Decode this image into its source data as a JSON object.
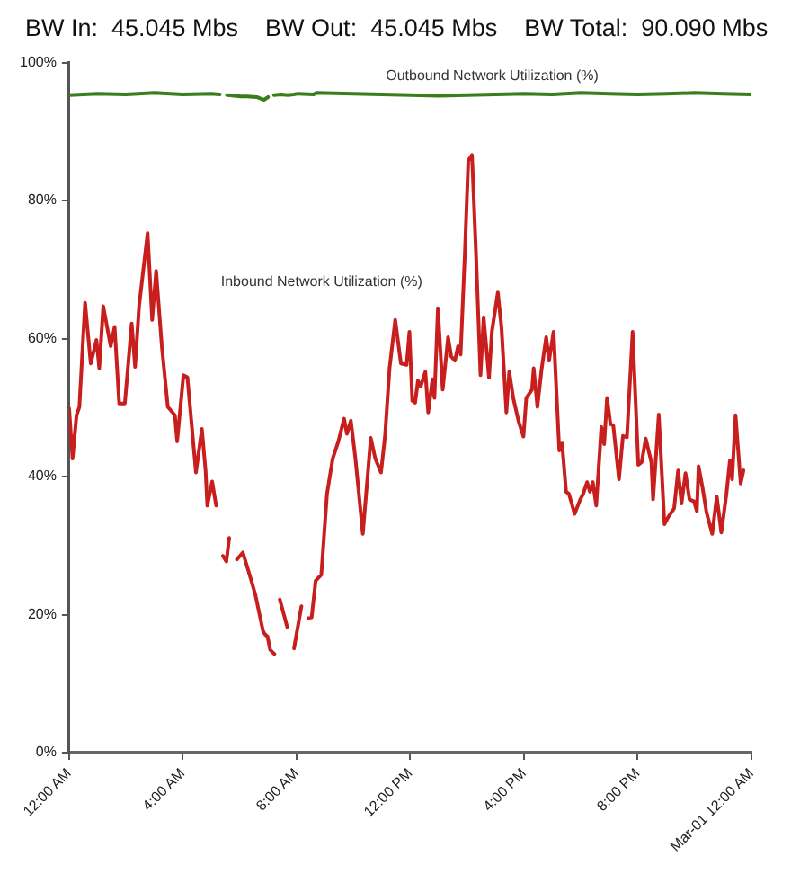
{
  "chart_data": {
    "type": "line",
    "title": "BW In:  45.045 Mbs    BW Out:  45.045 Mbs    BW Total:  90.090 Mbs",
    "xlim": [
      0,
      24
    ],
    "xticks": [
      {
        "value": 0,
        "label": "12:00 AM"
      },
      {
        "value": 4,
        "label": "4:00 AM"
      },
      {
        "value": 8,
        "label": "8:00 AM"
      },
      {
        "value": 12,
        "label": "12:00 PM"
      },
      {
        "value": 16,
        "label": "4:00 PM"
      },
      {
        "value": 20,
        "label": "8:00 PM"
      },
      {
        "value": 24,
        "label": "Mar-01 12:00 AM"
      }
    ],
    "ylim": [
      0,
      100
    ],
    "yticks": [
      {
        "value": 0,
        "label": "0%"
      },
      {
        "value": 20,
        "label": "20%"
      },
      {
        "value": 40,
        "label": "40%"
      },
      {
        "value": 60,
        "label": "60%"
      },
      {
        "value": 80,
        "label": "80%"
      },
      {
        "value": 100,
        "label": "100%"
      }
    ],
    "marker": "none",
    "line_style": "solid",
    "series": [
      {
        "name": "Outbound Network Utilization (%)",
        "color": "#3a7d1a",
        "x": [
          0,
          1,
          2,
          3,
          4,
          5,
          5.3,
          5.45,
          5.55,
          5.8,
          6.05,
          6.25,
          6.6,
          6.85,
          7.0,
          7.1,
          7.2,
          7.45,
          7.7,
          7.9,
          8.05,
          8.6,
          8.7,
          10,
          11,
          12,
          13,
          14,
          15,
          16,
          17,
          18,
          19,
          20,
          21,
          22,
          23,
          24
        ],
        "values": [
          95.3,
          95.5,
          95.4,
          95.6,
          95.4,
          95.5,
          95.4,
          null,
          95.3,
          95.2,
          95.1,
          95.1,
          95.0,
          94.6,
          95.0,
          null,
          95.3,
          95.4,
          95.3,
          95.4,
          95.5,
          95.4,
          95.6,
          95.5,
          95.4,
          95.3,
          95.2,
          95.3,
          95.4,
          95.5,
          95.4,
          95.6,
          95.5,
          95.4,
          95.5,
          95.6,
          95.5,
          95.4
        ]
      },
      {
        "name": "Inbound Network Utilization (%)",
        "color": "#c81e1e",
        "x": [
          0,
          0.12,
          0.26,
          0.36,
          0.56,
          0.76,
          0.96,
          1.06,
          1.2,
          1.46,
          1.6,
          1.76,
          1.96,
          2.2,
          2.32,
          2.46,
          2.76,
          2.92,
          3.06,
          3.26,
          3.47,
          3.72,
          3.8,
          4.02,
          4.16,
          4.46,
          4.67,
          4.8,
          4.86,
          5.03,
          5.17,
          5.3,
          5.41,
          5.53,
          5.63,
          5.75,
          5.9,
          6.11,
          6.41,
          6.56,
          6.82,
          6.9,
          6.98,
          7.07,
          7.14,
          7.22,
          7.3,
          7.41,
          7.67,
          7.75,
          7.91,
          8.17,
          8.3,
          8.41,
          8.53,
          8.67,
          8.87,
          9.07,
          9.27,
          9.47,
          9.67,
          9.77,
          9.91,
          10.07,
          10.33,
          10.61,
          10.77,
          10.97,
          11.11,
          11.27,
          11.47,
          11.67,
          11.87,
          11.97,
          12.07,
          12.17,
          12.27,
          12.37,
          12.53,
          12.63,
          12.78,
          12.85,
          12.97,
          13.14,
          13.33,
          13.44,
          13.57,
          13.68,
          13.77,
          13.92,
          14.04,
          14.17,
          14.31,
          14.47,
          14.58,
          14.77,
          14.87,
          15.08,
          15.21,
          15.38,
          15.48,
          15.62,
          15.81,
          15.98,
          16.08,
          16.28,
          16.34,
          16.47,
          16.62,
          16.78,
          16.88,
          17.04,
          17.24,
          17.34,
          17.48,
          17.58,
          17.78,
          17.98,
          18.08,
          18.22,
          18.32,
          18.42,
          18.54,
          18.72,
          18.82,
          18.92,
          19.04,
          19.14,
          19.34,
          19.48,
          19.62,
          19.82,
          20.02,
          20.14,
          20.28,
          20.48,
          20.54,
          20.74,
          20.94,
          21.08,
          21.28,
          21.42,
          21.54,
          21.68,
          21.82,
          21.98,
          22.08,
          22.14,
          22.28,
          22.42,
          22.62,
          22.78,
          22.94,
          23.12,
          23.24,
          23.32,
          23.44,
          23.62,
          23.72
        ],
        "values": [
          49.9,
          42.6,
          48.9,
          50.1,
          65.2,
          56.4,
          59.8,
          55.7,
          64.7,
          58.9,
          61.7,
          50.6,
          50.6,
          62.2,
          55.9,
          64.7,
          75.3,
          62.7,
          69.8,
          58.9,
          50.1,
          48.9,
          45.1,
          54.7,
          54.4,
          40.6,
          46.9,
          40.8,
          35.8,
          39.3,
          35.8,
          null,
          28.5,
          27.7,
          31.1,
          null,
          28.0,
          29.0,
          24.9,
          22.7,
          17.6,
          17.1,
          16.8,
          14.9,
          14.6,
          14.3,
          null,
          22.2,
          18.2,
          null,
          15.1,
          21.2,
          null,
          19.5,
          19.6,
          24.9,
          25.8,
          37.5,
          42.6,
          45.1,
          48.4,
          46.2,
          48.1,
          42.6,
          31.7,
          45.6,
          42.6,
          40.6,
          45.8,
          55.7,
          62.7,
          56.4,
          56.2,
          61.0,
          51.0,
          50.7,
          53.9,
          53.1,
          55.2,
          49.3,
          54.1,
          51.4,
          64.4,
          52.6,
          60.2,
          57.4,
          56.8,
          58.9,
          57.7,
          72.4,
          85.8,
          86.6,
          72.4,
          54.7,
          63.1,
          54.3,
          61.0,
          66.7,
          61.5,
          49.3,
          55.2,
          51.4,
          48.0,
          45.8,
          51.4,
          52.6,
          55.7,
          50.1,
          55.6,
          60.2,
          56.8,
          61.0,
          43.8,
          44.8,
          37.8,
          37.5,
          34.6,
          36.7,
          37.5,
          39.2,
          37.8,
          39.2,
          35.8,
          47.2,
          44.7,
          51.4,
          47.6,
          47.4,
          39.6,
          45.9,
          45.7,
          61.0,
          41.7,
          42.1,
          45.5,
          42.1,
          36.7,
          49.0,
          33.1,
          34.2,
          35.4,
          40.9,
          36.1,
          40.5,
          36.7,
          36.4,
          35.0,
          41.5,
          38.4,
          34.8,
          31.7,
          37.1,
          31.9,
          37.5,
          42.3,
          39.6,
          48.9,
          39.0,
          40.9
        ]
      }
    ]
  }
}
